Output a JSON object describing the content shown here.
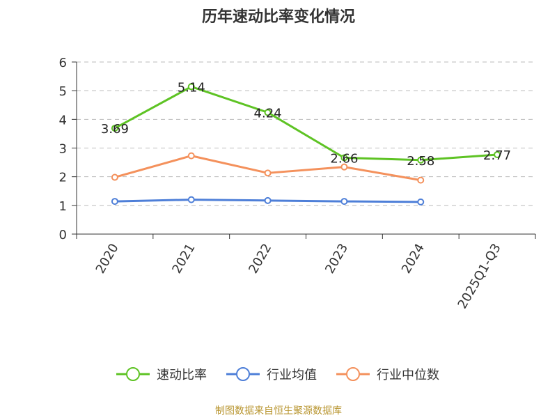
{
  "chart_data": {
    "type": "line",
    "title": "历年速动比率变化情况",
    "categories": [
      "2020",
      "2021",
      "2022",
      "2023",
      "2024",
      "2025Q1-Q3"
    ],
    "series": [
      {
        "name": "速动比率",
        "color": "#5ec324",
        "values": [
          3.69,
          5.14,
          4.24,
          2.66,
          2.58,
          2.77
        ],
        "show_labels": true
      },
      {
        "name": "行业均值",
        "color": "#4e7fd8",
        "values": [
          1.14,
          1.2,
          1.17,
          1.14,
          1.12,
          null
        ],
        "show_labels": false
      },
      {
        "name": "行业中位数",
        "color": "#f4915c",
        "values": [
          1.98,
          2.73,
          2.13,
          2.34,
          1.88,
          null
        ],
        "show_labels": false
      }
    ],
    "ylim": [
      0,
      6
    ],
    "yticks": [
      0,
      1,
      2,
      3,
      4,
      5,
      6
    ],
    "grid": true,
    "legend": "bottom",
    "xlabel": "",
    "ylabel": ""
  },
  "source_note": "制图数据来自恒生聚源数据库",
  "colors": {
    "source": "#b8952f",
    "axis": "#333333",
    "grid": "#bbbbbb"
  }
}
